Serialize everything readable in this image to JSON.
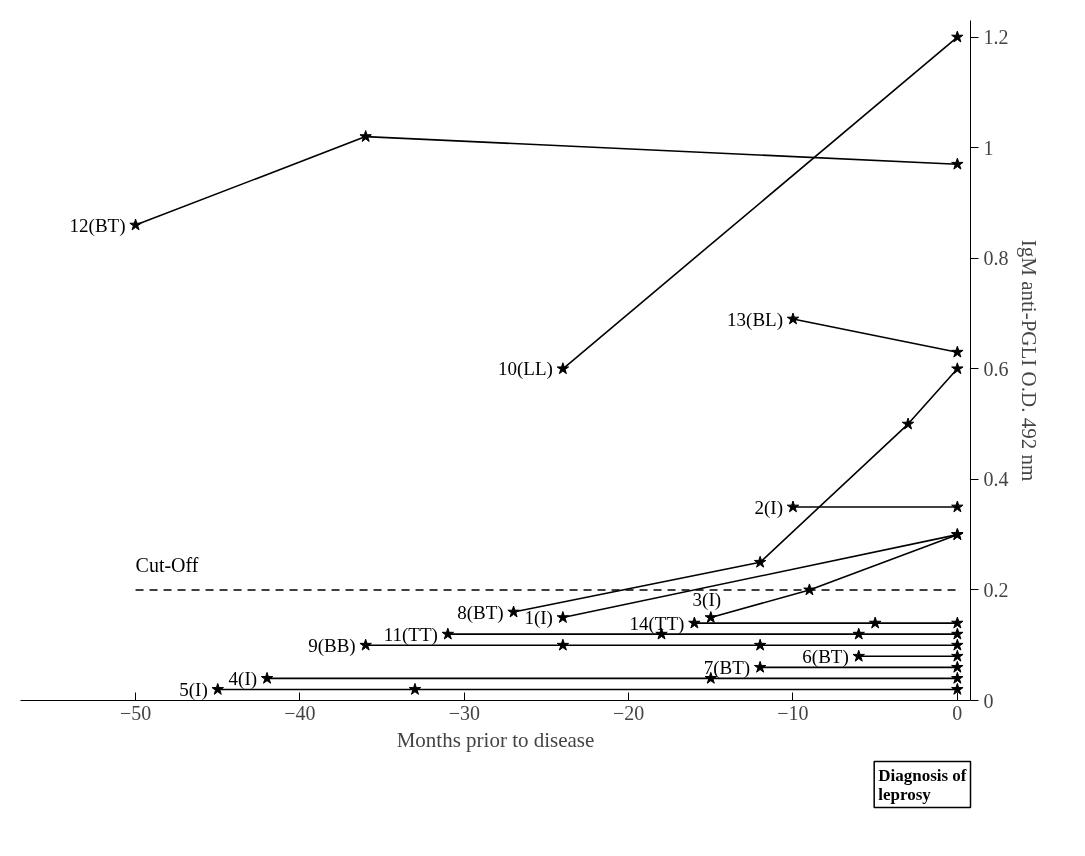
{
  "chart_data": {
    "type": "line",
    "xlabel": "Months prior to disease",
    "ylabel": "IgM anti-PGLI O.D. 492 nm",
    "xlim": [
      -57,
      0.8
    ],
    "ylim": [
      0,
      1.23
    ],
    "xticks": [
      -50,
      -40,
      -30,
      -20,
      -10,
      0
    ],
    "yticks": [
      0,
      0.2,
      0.4,
      0.6,
      0.8,
      1,
      1.2
    ],
    "marker": "star",
    "line_style": "solid",
    "grid": false,
    "ref_lines": [
      {
        "axis": "y",
        "value": 0.2,
        "label": "Cut-Off",
        "line_style": "dashed",
        "color": "#000000"
      }
    ],
    "annotations": [
      "Diagnosis of leprosy"
    ],
    "series": [
      {
        "name": "1(I)",
        "color": "#000000",
        "x": [
          -24,
          0
        ],
        "values": [
          0.15,
          0.3
        ]
      },
      {
        "name": "2(I)",
        "color": "#000000",
        "x": [
          -10,
          0
        ],
        "values": [
          0.35,
          0.35
        ]
      },
      {
        "name": "3(I)",
        "color": "#000000",
        "x": [
          -15,
          -9,
          0
        ],
        "values": [
          0.15,
          0.2,
          0.3
        ]
      },
      {
        "name": "4(I)",
        "color": "#000000",
        "x": [
          -42,
          -15,
          0
        ],
        "values": [
          0.04,
          0.04,
          0.04
        ]
      },
      {
        "name": "5(I)",
        "color": "#000000",
        "x": [
          -45,
          -33,
          0
        ],
        "values": [
          0.02,
          0.02,
          0.02
        ]
      },
      {
        "name": "6(BT)",
        "color": "#000000",
        "x": [
          -6,
          0
        ],
        "values": [
          0.08,
          0.08
        ]
      },
      {
        "name": "7(BT)",
        "color": "#000000",
        "x": [
          -12,
          0
        ],
        "values": [
          0.06,
          0.06
        ]
      },
      {
        "name": "8(BT)",
        "color": "#000000",
        "x": [
          -27,
          -12,
          -3,
          0
        ],
        "values": [
          0.16,
          0.25,
          0.5,
          0.6
        ]
      },
      {
        "name": "9(BB)",
        "color": "#000000",
        "x": [
          -36,
          -24,
          -12,
          0
        ],
        "values": [
          0.1,
          0.1,
          0.1,
          0.1
        ]
      },
      {
        "name": "10(LL)",
        "color": "#000000",
        "x": [
          -24,
          0
        ],
        "values": [
          0.6,
          1.2
        ]
      },
      {
        "name": "11(TT)",
        "color": "#000000",
        "x": [
          -31,
          -18,
          -6,
          0
        ],
        "values": [
          0.12,
          0.12,
          0.12,
          0.12
        ]
      },
      {
        "name": "12(BT)",
        "color": "#000000",
        "x": [
          -50,
          -36,
          0
        ],
        "values": [
          0.86,
          1.02,
          0.97
        ]
      },
      {
        "name": "13(BL)",
        "color": "#000000",
        "x": [
          -10,
          0
        ],
        "values": [
          0.69,
          0.63
        ]
      },
      {
        "name": "14(TT)",
        "color": "#000000",
        "x": [
          -16,
          -5,
          0
        ],
        "values": [
          0.14,
          0.14,
          0.14
        ]
      }
    ]
  }
}
